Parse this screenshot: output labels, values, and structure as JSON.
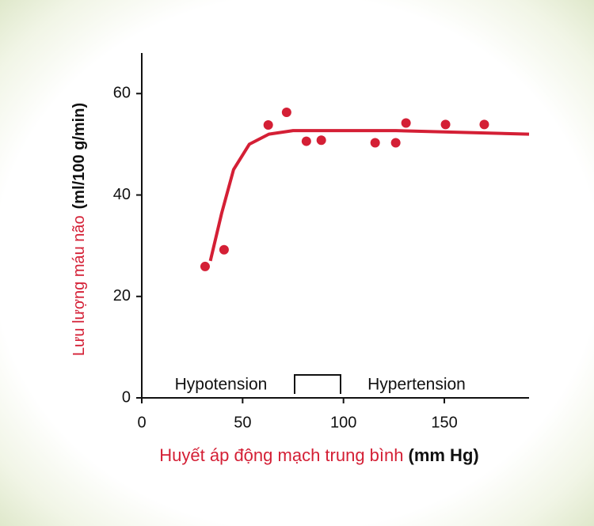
{
  "chart_data": {
    "type": "scatter",
    "x_label": {
      "text": "Huyết áp động mạch trung bình",
      "unit": "(mm Hg)"
    },
    "y_label": {
      "text": "Lưu lượng máu não",
      "unit": "(ml/100 g/min)"
    },
    "annotations": [
      "Hypotension",
      "Hypertension"
    ],
    "xlim": [
      0,
      192
    ],
    "xticks": [
      0,
      50,
      100,
      150
    ],
    "ylim": [
      0,
      68
    ],
    "yticks": [
      0,
      20,
      40,
      60
    ],
    "grid": false,
    "series": [
      {
        "type": "scatter",
        "color": "#d41f35",
        "x": [
          31.4,
          40.8,
          62.7,
          71.8,
          81.6,
          89,
          115.7,
          125.9,
          131,
          150.6,
          169.8
        ],
        "values": [
          25.9,
          29.2,
          53.8,
          56.3,
          50.6,
          50.8,
          50.3,
          50.3,
          54.2,
          53.9,
          53.9
        ]
      },
      {
        "type": "line",
        "color": "#d41f35",
        "x": [
          34,
          39.6,
          45.5,
          53.3,
          63,
          75,
          126,
          192
        ],
        "values": [
          27,
          36.4,
          45,
          50,
          52,
          52.7,
          52.7,
          52
        ]
      }
    ]
  }
}
